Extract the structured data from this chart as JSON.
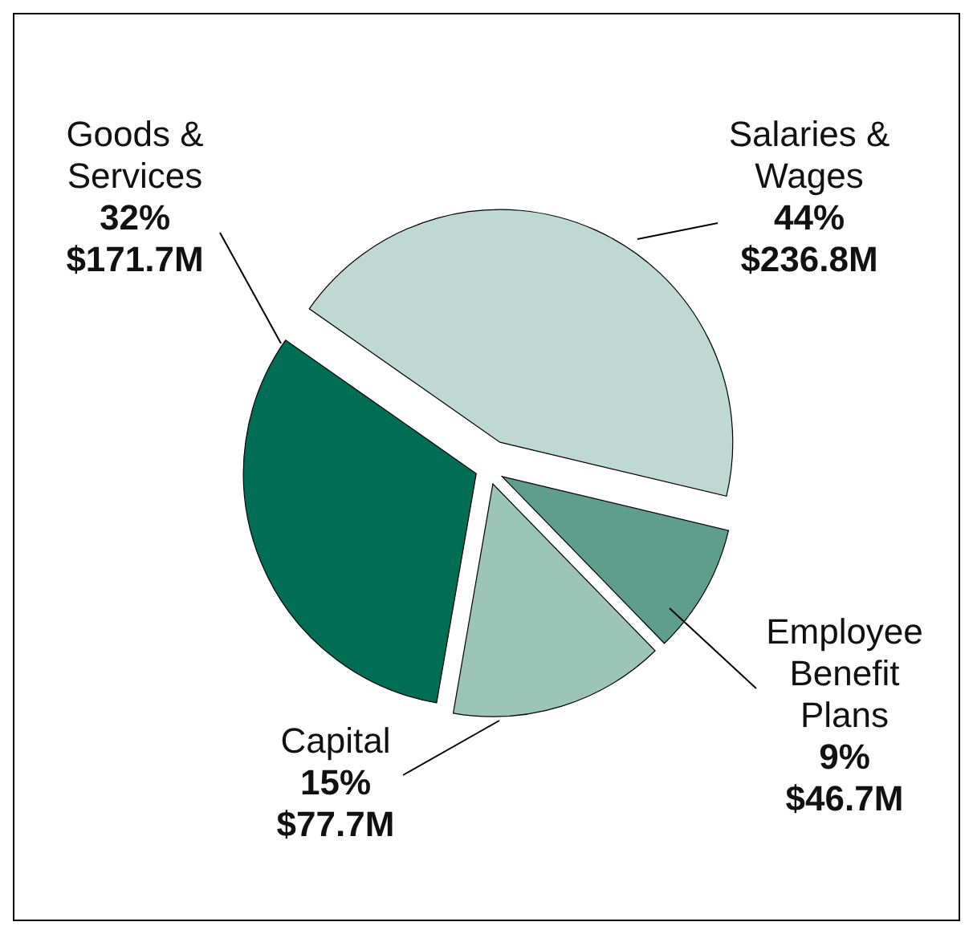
{
  "chart_data": {
    "type": "pie",
    "categories": [
      "Salaries & Wages",
      "Employee Benefit Plans",
      "Capital",
      "Goods & Services"
    ],
    "values": [
      44,
      9,
      15,
      32
    ],
    "value_labels": [
      "44%",
      "9%",
      "15%",
      "32%"
    ],
    "annotations": [
      "$236.8M",
      "$46.7M",
      "$77.7M",
      "$171.7M"
    ],
    "colors": [
      "#bfd9d2",
      "#5f9e8c",
      "#9cc5b8",
      "#006e55"
    ]
  }
}
